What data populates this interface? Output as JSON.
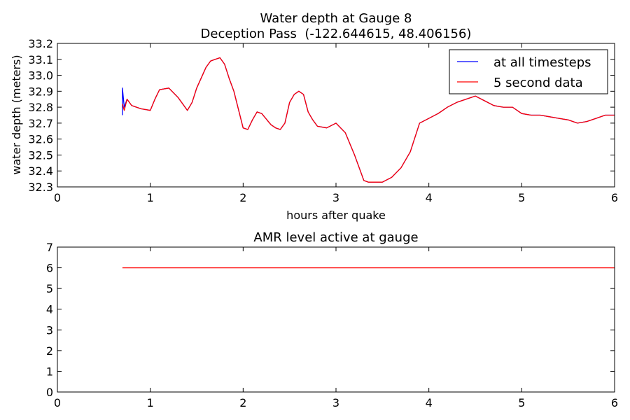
{
  "chart_data": [
    {
      "type": "line",
      "title": "Water depth at Gauge 8",
      "subtitle": "Deception Pass  (-122.644615, 48.406156)",
      "xlabel": "hours after quake",
      "ylabel": "water depth (meters)",
      "xlim": [
        0,
        6
      ],
      "ylim": [
        32.3,
        33.2
      ],
      "x_ticks": [
        0,
        1,
        2,
        3,
        4,
        5,
        6
      ],
      "x_tick_labels": [
        "0",
        "1",
        "2",
        "3",
        "4",
        "5",
        "6"
      ],
      "y_ticks": [
        32.3,
        32.4,
        32.5,
        32.6,
        32.7,
        32.8,
        32.9,
        33.0,
        33.1,
        33.2
      ],
      "y_tick_labels": [
        "32.3",
        "32.4",
        "32.5",
        "32.6",
        "32.7",
        "32.8",
        "32.9",
        "33.0",
        "33.1",
        "33.2"
      ],
      "grid": false,
      "legend": {
        "placement": "top-right",
        "entries": [
          "at all timesteps",
          "5 second data"
        ]
      },
      "series": [
        {
          "name": "at all timesteps",
          "color": "#0000ff",
          "x": [
            0.7,
            0.7,
            0.72,
            0.75,
            0.8,
            0.9,
            1.0,
            1.05,
            1.1,
            1.2,
            1.3,
            1.4,
            1.45,
            1.5,
            1.6,
            1.65,
            1.7,
            1.75,
            1.8,
            1.85,
            1.9,
            2.0,
            2.05,
            2.1,
            2.15,
            2.2,
            2.3,
            2.35,
            2.4,
            2.45,
            2.5,
            2.55,
            2.6,
            2.65,
            2.7,
            2.75,
            2.8,
            2.9,
            3.0,
            3.1,
            3.2,
            3.3,
            3.35,
            3.4,
            3.5,
            3.6,
            3.7,
            3.8,
            3.9,
            4.0,
            4.1,
            4.2,
            4.3,
            4.4,
            4.5,
            4.6,
            4.7,
            4.8,
            4.9,
            5.0,
            5.1,
            5.2,
            5.3,
            5.4,
            5.5,
            5.6,
            5.7,
            5.8,
            5.9,
            6.0
          ],
          "y": [
            32.75,
            32.92,
            32.8,
            32.85,
            32.81,
            32.79,
            32.78,
            32.85,
            32.91,
            32.92,
            32.86,
            32.78,
            32.83,
            32.92,
            33.05,
            33.09,
            33.1,
            33.11,
            33.07,
            32.98,
            32.9,
            32.67,
            32.66,
            32.72,
            32.77,
            32.76,
            32.69,
            32.67,
            32.66,
            32.7,
            32.83,
            32.88,
            32.9,
            32.88,
            32.77,
            32.72,
            32.68,
            32.67,
            32.7,
            32.64,
            32.5,
            32.34,
            32.33,
            32.33,
            32.33,
            32.36,
            32.42,
            32.52,
            32.7,
            32.73,
            32.76,
            32.8,
            32.83,
            32.85,
            32.87,
            32.84,
            32.81,
            32.8,
            32.8,
            32.76,
            32.75,
            32.75,
            32.74,
            32.73,
            32.72,
            32.7,
            32.71,
            32.73,
            32.75,
            32.75
          ]
        },
        {
          "name": "5 second data",
          "color": "#ff0000",
          "x": [
            0.7,
            0.72,
            0.75,
            0.8,
            0.9,
            1.0,
            1.05,
            1.1,
            1.2,
            1.3,
            1.4,
            1.45,
            1.5,
            1.6,
            1.65,
            1.7,
            1.75,
            1.8,
            1.85,
            1.9,
            2.0,
            2.05,
            2.1,
            2.15,
            2.2,
            2.3,
            2.35,
            2.4,
            2.45,
            2.5,
            2.55,
            2.6,
            2.65,
            2.7,
            2.75,
            2.8,
            2.9,
            3.0,
            3.1,
            3.2,
            3.3,
            3.35,
            3.4,
            3.5,
            3.6,
            3.7,
            3.8,
            3.9,
            4.0,
            4.1,
            4.2,
            4.3,
            4.4,
            4.5,
            4.6,
            4.7,
            4.8,
            4.9,
            5.0,
            5.1,
            5.2,
            5.3,
            5.4,
            5.5,
            5.6,
            5.7,
            5.8,
            5.9,
            6.0
          ],
          "y": [
            32.82,
            32.78,
            32.85,
            32.81,
            32.79,
            32.78,
            32.85,
            32.91,
            32.92,
            32.86,
            32.78,
            32.83,
            32.92,
            33.05,
            33.09,
            33.1,
            33.11,
            33.07,
            32.98,
            32.9,
            32.67,
            32.66,
            32.72,
            32.77,
            32.76,
            32.69,
            32.67,
            32.66,
            32.7,
            32.83,
            32.88,
            32.9,
            32.88,
            32.77,
            32.72,
            32.68,
            32.67,
            32.7,
            32.64,
            32.5,
            32.34,
            32.33,
            32.33,
            32.33,
            32.36,
            32.42,
            32.52,
            32.7,
            32.73,
            32.76,
            32.8,
            32.83,
            32.85,
            32.87,
            32.84,
            32.81,
            32.8,
            32.8,
            32.76,
            32.75,
            32.75,
            32.74,
            32.73,
            32.72,
            32.7,
            32.71,
            32.73,
            32.75,
            32.75
          ]
        }
      ]
    },
    {
      "type": "line",
      "title": "AMR level active at gauge",
      "xlabel": "",
      "ylabel": "",
      "xlim": [
        0,
        6
      ],
      "ylim": [
        0,
        7
      ],
      "x_ticks": [
        0,
        1,
        2,
        3,
        4,
        5,
        6
      ],
      "x_tick_labels": [
        "0",
        "1",
        "2",
        "3",
        "4",
        "5",
        "6"
      ],
      "y_ticks": [
        0,
        1,
        2,
        3,
        4,
        5,
        6,
        7
      ],
      "y_tick_labels": [
        "0",
        "1",
        "2",
        "3",
        "4",
        "5",
        "6",
        "7"
      ],
      "grid": false,
      "series": [
        {
          "color": "#ff0000",
          "x": [
            0.7,
            6.0
          ],
          "y": [
            6,
            6
          ]
        }
      ]
    }
  ]
}
